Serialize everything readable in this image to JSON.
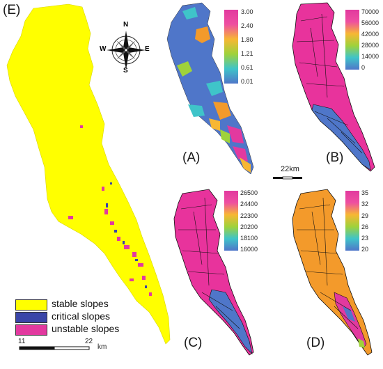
{
  "panels": {
    "E": {
      "label": "(E)"
    },
    "A": {
      "label": "(A)",
      "colorbar": {
        "ticks": [
          "3.00",
          "2.40",
          "1.80",
          "1.21",
          "0.61",
          "0.01"
        ]
      }
    },
    "B": {
      "label": "(B)",
      "colorbar": {
        "ticks": [
          "70000",
          "56000",
          "42000",
          "28000",
          "14000",
          "0"
        ]
      }
    },
    "C": {
      "label": "(C)",
      "colorbar": {
        "ticks": [
          "26500",
          "24400",
          "22300",
          "20200",
          "18100",
          "16000"
        ]
      }
    },
    "D": {
      "label": "(D)",
      "colorbar": {
        "ticks": [
          "35",
          "32",
          "29",
          "26",
          "23",
          "20"
        ]
      }
    }
  },
  "compass": {
    "n": "N",
    "s": "S",
    "e": "E",
    "w": "W"
  },
  "legend": {
    "items": [
      {
        "label": "stable slopes",
        "color": "#ffff00"
      },
      {
        "label": "critical slopes",
        "color": "#3a45a8"
      },
      {
        "label": "unstable slopes",
        "color": "#e2399f"
      }
    ]
  },
  "scalebar_small": {
    "label": "22km"
  },
  "scalebar_main": {
    "left": "11",
    "right": "22",
    "unit": "km"
  },
  "colors": {
    "stable": "#ffff00",
    "critical": "#3a45a8",
    "unstable": "#e2399f",
    "magenta_map": "#e8339c",
    "orange_map": "#f39a2b",
    "blue_map": "#4f76c9",
    "colorbar_gradient": [
      "#e2399f",
      "#ee4fa0",
      "#f7b733",
      "#9fd23b",
      "#3fc4c9",
      "#4f76c9"
    ]
  }
}
